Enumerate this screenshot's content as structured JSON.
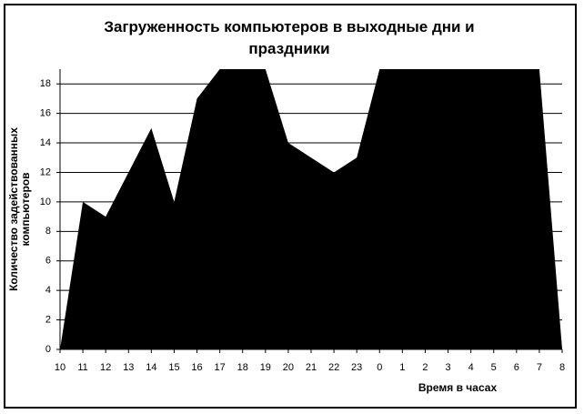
{
  "chart_data": {
    "type": "area",
    "title": "Загруженность компьютеров в выходные дни и праздники",
    "x_label": "Время в часах",
    "y_label": "Количество задействованных компьютеров",
    "categories": [
      "10",
      "11",
      "12",
      "13",
      "14",
      "15",
      "16",
      "17",
      "18",
      "19",
      "20",
      "21",
      "22",
      "23",
      "0",
      "1",
      "2",
      "3",
      "4",
      "5",
      "6",
      "7",
      "8"
    ],
    "values": [
      0,
      10,
      9,
      12,
      15,
      10,
      17,
      19,
      19,
      19,
      14,
      13,
      12,
      13,
      19,
      19,
      19,
      19,
      19,
      19,
      19,
      19,
      0
    ],
    "color": "#000000",
    "ylim": [
      0,
      19
    ],
    "yticks": [
      0,
      2,
      4,
      6,
      8,
      10,
      12,
      14,
      16,
      18
    ],
    "grid": true
  }
}
